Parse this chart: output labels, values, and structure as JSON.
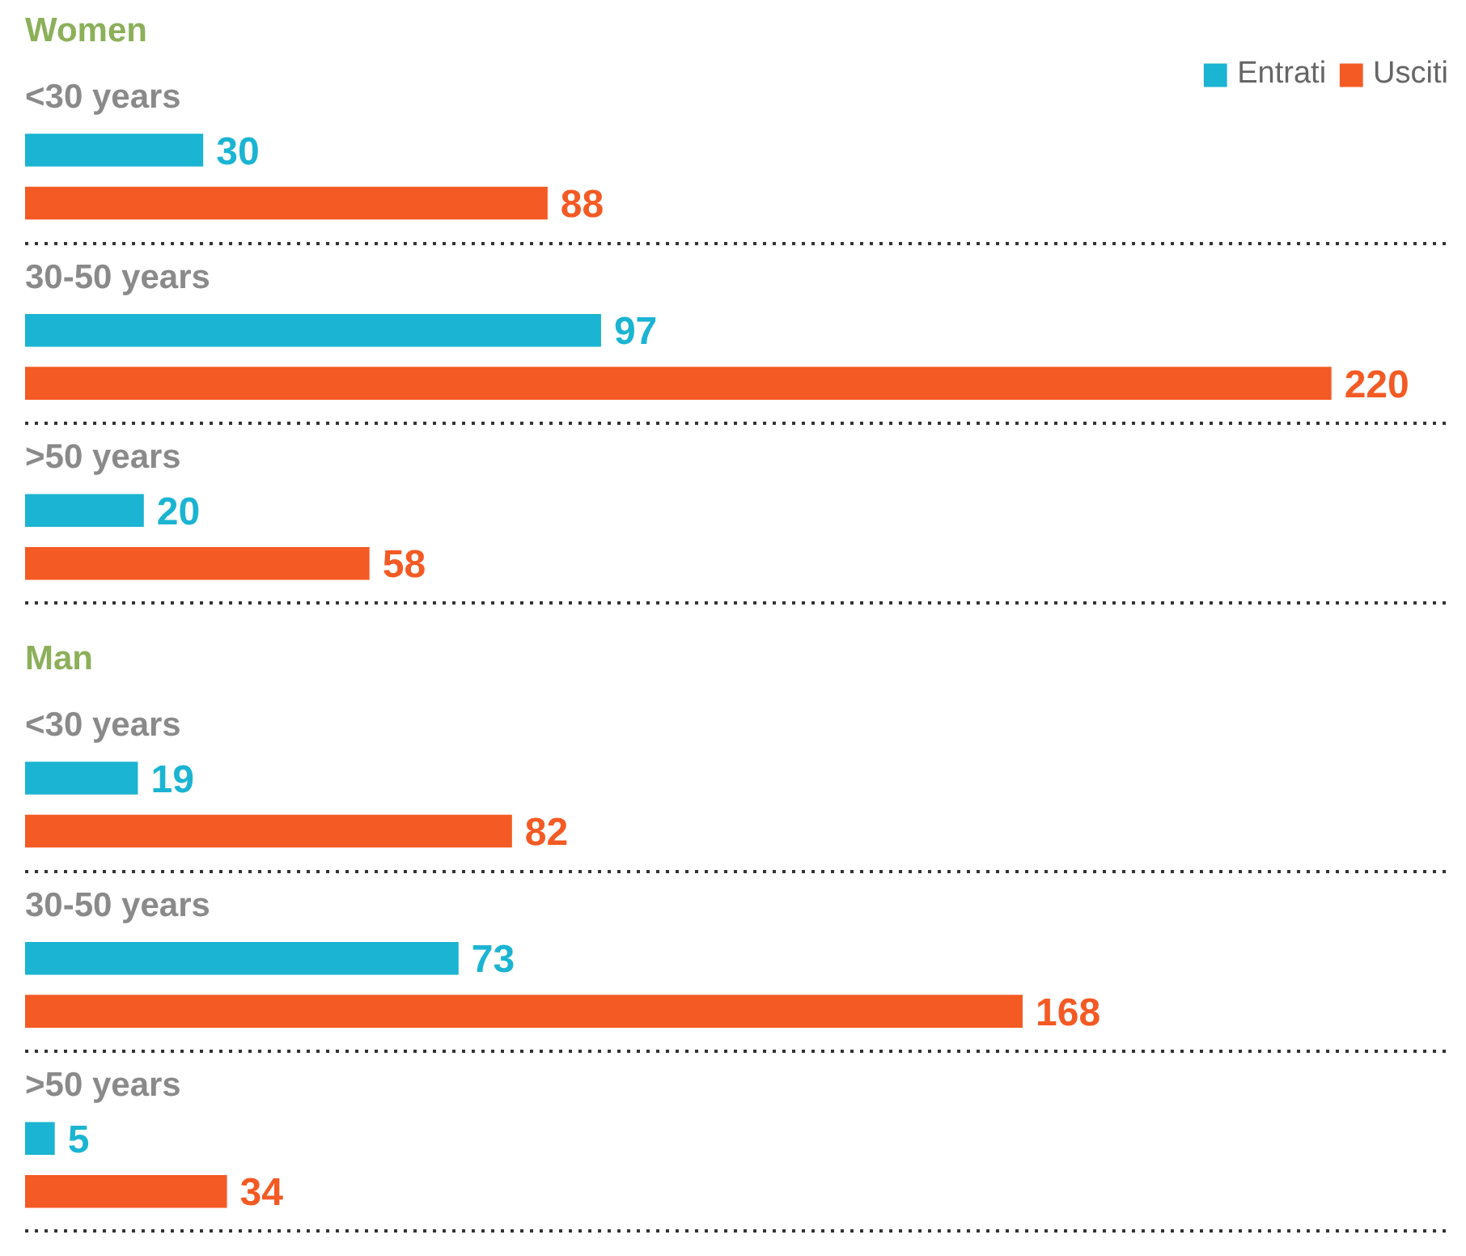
{
  "chart_data": [
    {
      "type": "bar",
      "orientation": "horizontal",
      "title": "Women",
      "categories": [
        "<30 years",
        "30-50 years",
        ">50 years"
      ],
      "series": [
        {
          "name": "Entrati",
          "color": "#1bb4d2",
          "values": [
            30,
            97,
            20
          ]
        },
        {
          "name": "Usciti",
          "color": "#f45a24",
          "values": [
            88,
            220,
            58
          ]
        }
      ],
      "data_labels": true,
      "legend": "top right",
      "grid": "y"
    },
    {
      "type": "bar",
      "orientation": "horizontal",
      "title": "Man",
      "categories": [
        "<30 years",
        "30-50 years",
        ">50 years"
      ],
      "series": [
        {
          "color": "#1bb4d2",
          "values": [
            19,
            73,
            5
          ]
        },
        {
          "color": "#f45a24",
          "values": [
            82,
            168,
            34
          ]
        }
      ],
      "data_labels": true,
      "legend": false,
      "grid": "y"
    }
  ]
}
